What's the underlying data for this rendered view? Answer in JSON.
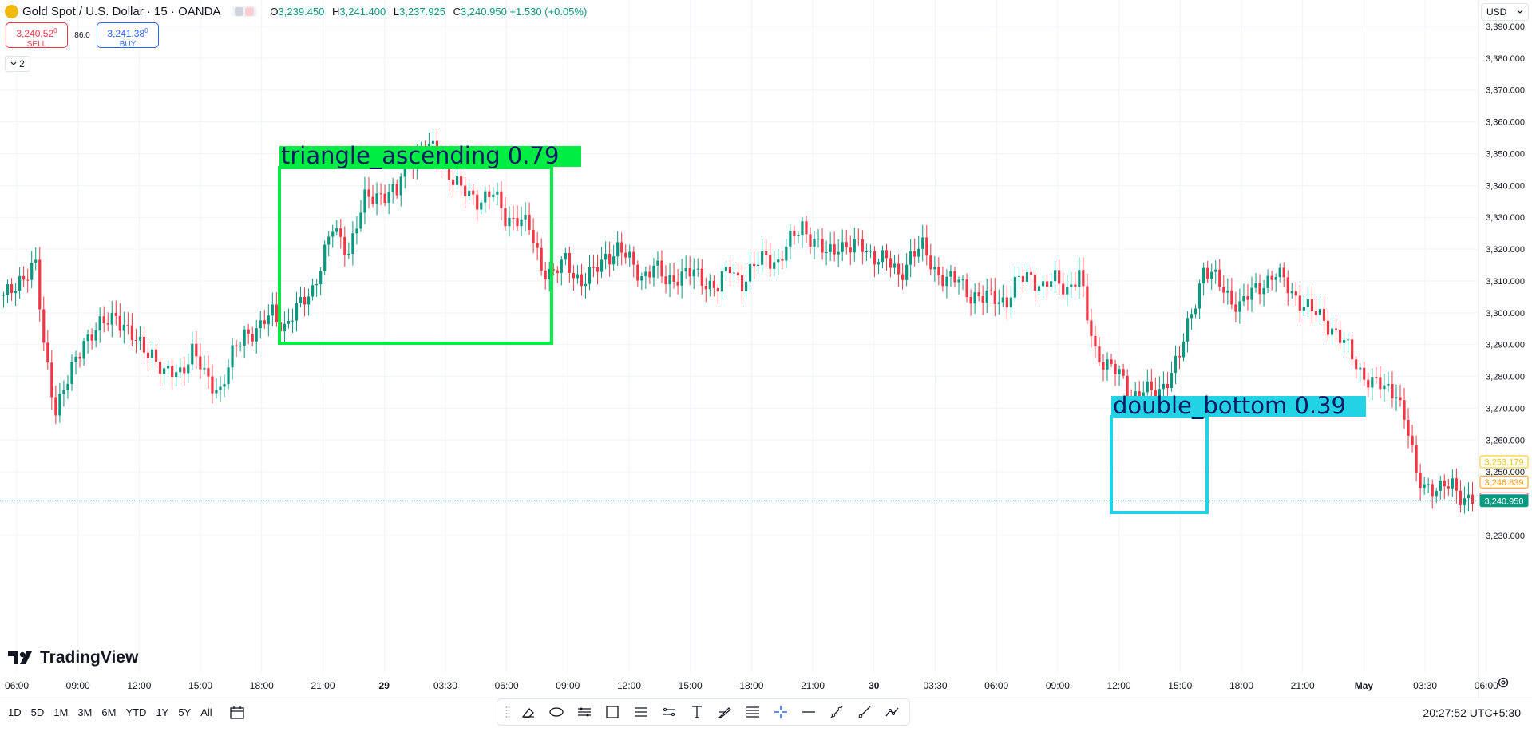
{
  "header": {
    "symbol_title": "Gold Spot / U.S. Dollar · 15 · OANDA",
    "ohlc": {
      "open_label": "O",
      "open": "3,239.450",
      "high_label": "H",
      "high": "3,241.400",
      "low_label": "L",
      "low": "3,237.925",
      "close_label": "C",
      "close": "3,240.950",
      "change": "+1.530 (+0.05%)"
    },
    "sell": {
      "price": "3,240.52",
      "sup": "0",
      "label": "SELL"
    },
    "buy": {
      "price": "3,241.38",
      "sup": "0",
      "label": "BUY"
    },
    "spread": "86.0",
    "indicator_count": "2",
    "currency": "USD"
  },
  "detections": [
    {
      "label": "triangle_ascending  0.79",
      "color": "#00ee44"
    },
    {
      "label": "double_bottom  0.39",
      "color": "#22d3e6"
    }
  ],
  "price_axis": {
    "ticks": [
      "3,390.000",
      "3,380.000",
      "3,370.000",
      "3,360.000",
      "3,350.000",
      "3,340.000",
      "3,330.000",
      "3,320.000",
      "3,310.000",
      "3,300.000",
      "3,290.000",
      "3,280.000",
      "3,270.000",
      "3,260.000",
      "3,250.000",
      "3,230.000"
    ],
    "tags": [
      {
        "value": "3,253.179",
        "color": "#f5c400",
        "filled": false
      },
      {
        "value": "3,246.839",
        "color": "#ff9800",
        "filled": false
      },
      {
        "value": "3,241.535",
        "color": "#f23645",
        "filled": false
      },
      {
        "value": "3,240.950",
        "color": "#089981",
        "filled": true
      }
    ]
  },
  "time_axis": {
    "labels": [
      "06:00",
      "09:00",
      "12:00",
      "15:00",
      "18:00",
      "21:00",
      "29",
      "03:30",
      "06:00",
      "09:00",
      "12:00",
      "15:00",
      "18:00",
      "21:00",
      "30",
      "03:30",
      "06:00",
      "09:00",
      "12:00",
      "15:00",
      "18:00",
      "21:00",
      "May",
      "03:30",
      "06:00"
    ]
  },
  "branding": {
    "name": "TradingView"
  },
  "ranges": [
    "1D",
    "5D",
    "1M",
    "3M",
    "6M",
    "YTD",
    "1Y",
    "5Y",
    "All"
  ],
  "clock": "20:27:52 UTC+5:30",
  "colors": {
    "up": "#089981",
    "down": "#f23645",
    "grid": "#f0f3fa",
    "accent": "#2962ff"
  },
  "toolbar_icons": [
    "eraser-icon",
    "brush-icon",
    "pattern-icon",
    "ruler-icon",
    "rectangle-icon",
    "parallel-channel-icon",
    "text-tool-icon",
    "pen-icon",
    "fib-icon",
    "crosshair-icon",
    "horizontal-line-icon",
    "trend-line-icon",
    "ray-icon",
    "path-icon"
  ],
  "chart_data": {
    "type": "candlestick",
    "title": "Gold Spot / U.S. Dollar · 15 · OANDA",
    "ylim": [
      3225,
      3395
    ],
    "current_price": 3240.95,
    "series": [
      {
        "name": "segment",
        "points": [
          [
            0,
            3304
          ],
          [
            4,
            3311
          ],
          [
            8,
            3314
          ],
          [
            10,
            3290
          ],
          [
            13,
            3270
          ],
          [
            16,
            3278
          ],
          [
            20,
            3292
          ],
          [
            25,
            3296
          ],
          [
            28,
            3300
          ],
          [
            33,
            3290
          ],
          [
            37,
            3288
          ],
          [
            40,
            3280
          ],
          [
            44,
            3282
          ],
          [
            47,
            3288
          ],
          [
            50,
            3280
          ],
          [
            54,
            3276
          ],
          [
            57,
            3286
          ],
          [
            60,
            3294
          ],
          [
            64,
            3295
          ],
          [
            67,
            3300
          ],
          [
            70,
            3296
          ],
          [
            74,
            3302
          ],
          [
            77,
            3308
          ],
          [
            82,
            3326
          ],
          [
            86,
            3320
          ],
          [
            90,
            3335
          ],
          [
            94,
            3338
          ],
          [
            98,
            3337
          ],
          [
            100,
            3348
          ],
          [
            104,
            3350
          ],
          [
            107,
            3351
          ],
          [
            110,
            3346
          ],
          [
            114,
            3338
          ],
          [
            118,
            3336
          ],
          [
            122,
            3337
          ],
          [
            125,
            3330
          ],
          [
            128,
            3330
          ],
          [
            131,
            3326
          ],
          [
            134,
            3315
          ],
          [
            137,
            3312
          ],
          [
            140,
            3316
          ],
          [
            144,
            3310
          ],
          [
            147,
            3312
          ],
          [
            150,
            3318
          ],
          [
            153,
            3320
          ],
          [
            156,
            3316
          ],
          [
            159,
            3312
          ],
          [
            162,
            3314
          ],
          [
            165,
            3310
          ],
          [
            168,
            3312
          ],
          [
            172,
            3312
          ],
          [
            175,
            3310
          ],
          [
            178,
            3308
          ],
          [
            181,
            3314
          ],
          [
            184,
            3310
          ],
          [
            187,
            3314
          ],
          [
            190,
            3318
          ],
          [
            193,
            3316
          ],
          [
            196,
            3322
          ],
          [
            199,
            3328
          ],
          [
            202,
            3322
          ],
          [
            205,
            3318
          ],
          [
            208,
            3322
          ],
          [
            211,
            3320
          ],
          [
            214,
            3321
          ],
          [
            217,
            3318
          ],
          [
            220,
            3316
          ],
          [
            223,
            3312
          ],
          [
            226,
            3318
          ],
          [
            229,
            3320
          ],
          [
            232,
            3314
          ],
          [
            235,
            3310
          ],
          [
            238,
            3310
          ],
          [
            241,
            3306
          ],
          [
            244,
            3304
          ],
          [
            247,
            3305
          ],
          [
            250,
            3304
          ],
          [
            253,
            3310
          ],
          [
            256,
            3312
          ],
          [
            259,
            3308
          ],
          [
            262,
            3310
          ],
          [
            265,
            3308
          ],
          [
            268,
            3312
          ],
          [
            270,
            3298
          ],
          [
            272,
            3288
          ],
          [
            275,
            3284
          ],
          [
            278,
            3280
          ],
          [
            281,
            3274
          ],
          [
            284,
            3276
          ],
          [
            287,
            3273
          ],
          [
            290,
            3280
          ],
          [
            293,
            3286
          ],
          [
            296,
            3300
          ],
          [
            299,
            3314
          ],
          [
            302,
            3310
          ],
          [
            305,
            3306
          ],
          [
            308,
            3302
          ],
          [
            311,
            3306
          ],
          [
            314,
            3310
          ],
          [
            317,
            3312
          ],
          [
            320,
            3308
          ],
          [
            323,
            3304
          ],
          [
            326,
            3300
          ],
          [
            329,
            3298
          ],
          [
            332,
            3294
          ],
          [
            335,
            3288
          ],
          [
            338,
            3282
          ],
          [
            341,
            3278
          ],
          [
            344,
            3276
          ],
          [
            347,
            3276
          ],
          [
            350,
            3262
          ],
          [
            352,
            3248
          ],
          [
            355,
            3246
          ],
          [
            358,
            3244
          ],
          [
            361,
            3246
          ],
          [
            364,
            3242
          ],
          [
            366,
            3241
          ]
        ]
      }
    ]
  }
}
